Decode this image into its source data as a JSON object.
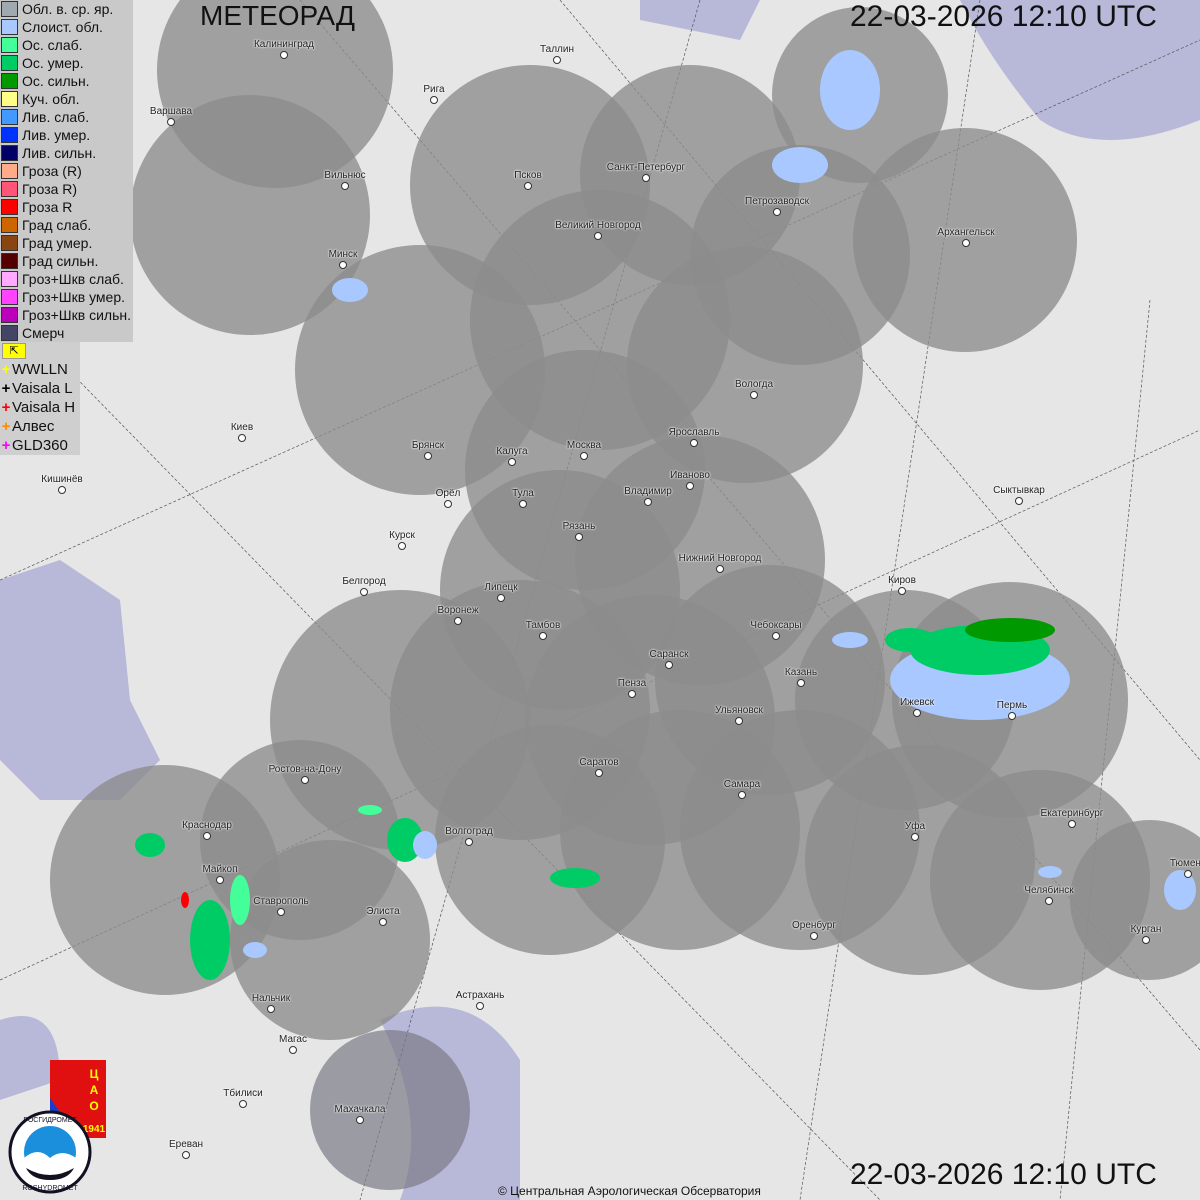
{
  "title": "МЕТЕОРАД",
  "timestamp_top": "22-03-2026  12:10 UTC",
  "timestamp_bottom": "22-03-2026  12:10 UTC",
  "credit": "© Центральная Аэрологическая Обсерватория",
  "logos": {
    "cao": "ЦАО 1941",
    "roshydromet": "РОСГИДРОМЕТ ROSHYDROMET"
  },
  "legend": [
    {
      "label": "Обл. в. ср. яр.",
      "color": "#a0a8b0"
    },
    {
      "label": "Слоист. обл.",
      "color": "#a8c8ff"
    },
    {
      "label": "Ос. слаб.",
      "color": "#44ff99"
    },
    {
      "label": "Ос. умер.",
      "color": "#00cc66"
    },
    {
      "label": "Ос. сильн.",
      "color": "#009900"
    },
    {
      "label": "Куч. обл.",
      "color": "#ffff88"
    },
    {
      "label": "Лив. слаб.",
      "color": "#4499ff"
    },
    {
      "label": "Лив. умер.",
      "color": "#0033ff"
    },
    {
      "label": "Лив. сильн.",
      "color": "#000066"
    },
    {
      "label": "Гроза (R)",
      "color": "#ffaa88"
    },
    {
      "label": "Гроза R)",
      "color": "#ff5577"
    },
    {
      "label": "Гроза R",
      "color": "#ff0000"
    },
    {
      "label": "Град слаб.",
      "color": "#cc6600"
    },
    {
      "label": "Град умер.",
      "color": "#884411"
    },
    {
      "label": "Град сильн.",
      "color": "#550000"
    },
    {
      "label": "Гроз+Шкв слаб.",
      "color": "#ffaaff"
    },
    {
      "label": "Гроз+Шкв умер.",
      "color": "#ff44ff"
    },
    {
      "label": "Гроз+Шкв сильн.",
      "color": "#bb00bb"
    },
    {
      "label": "Смерч",
      "color": "#444466"
    }
  ],
  "lightning_toggle_icon": "flag-icon",
  "lightning_sources": [
    {
      "label": "WWLLN",
      "color": "#ffff00"
    },
    {
      "label": "Vaisala L",
      "color": "#000000"
    },
    {
      "label": "Vaisala H",
      "color": "#ff0000"
    },
    {
      "label": "Алвес",
      "color": "#ff8800"
    },
    {
      "label": "GLD360",
      "color": "#ff00ff"
    }
  ],
  "cities": [
    "Калининград",
    "Таллин",
    "Рига",
    "Варшава",
    "Санкт-Петербург",
    "Псков",
    "Вильнюс",
    "Петрозаводск",
    "Великий Новгород",
    "Архангельск",
    "Минск",
    "Вологда",
    "Киев",
    "Ярославль",
    "Брянск",
    "Калуга",
    "Москва",
    "Иваново",
    "Владимир",
    "Тула",
    "Орёл",
    "Кишинёв",
    "Сыктывкар",
    "Рязань",
    "Курск",
    "Нижний Новгород",
    "Киров",
    "Белгород",
    "Липецк",
    "Воронеж",
    "Тамбов",
    "Чебоксары",
    "Саранск",
    "Казань",
    "Пенза",
    "Ижевск",
    "Пермь",
    "Ульяновск",
    "Ростов-на-Дону",
    "Саратов",
    "Самара",
    "Краснодар",
    "Волгоград",
    "Уфа",
    "Екатеринбург",
    "Майкоп",
    "Ставрополь",
    "Элиста",
    "Челябинск",
    "Оренбург",
    "Курган",
    "Тюмень",
    "Астрахань",
    "Нальчик",
    "Магас",
    "Тбилиси",
    "Махачкала",
    "Ереван"
  ]
}
